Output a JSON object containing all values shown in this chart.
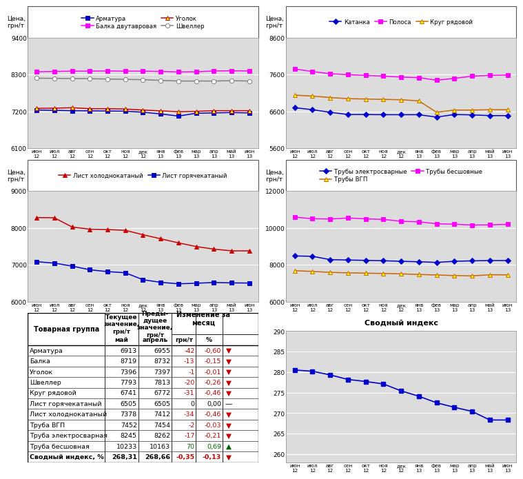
{
  "x_labels": [
    "июн\n12",
    "июл\n12",
    "авг\n12",
    "сен\n12",
    "окт\n12",
    "ноя\n12",
    "дек\n12",
    "янв\n13",
    "фев\n13",
    "мар\n13",
    "апр\n13",
    "май\n13",
    "июн\n13"
  ],
  "n_points": 13,
  "chart1": {
    "title": "Цена,\nгрн/т",
    "ylim": [
      6100,
      9400
    ],
    "yticks": [
      6100,
      7200,
      8300,
      9400
    ],
    "series": {
      "Арматура": {
        "color": "#0000CC",
        "marker": "s",
        "mfc": "#0000CC",
        "values": [
          7240,
          7230,
          7220,
          7215,
          7210,
          7205,
          7175,
          7125,
          7060,
          7145,
          7155,
          7165,
          7155
        ]
      },
      "Балка двутавровая": {
        "color": "#FF00FF",
        "marker": "s",
        "mfc": "#FF00FF",
        "values": [
          8380,
          8390,
          8400,
          8400,
          8405,
          8400,
          8400,
          8390,
          8375,
          8380,
          8405,
          8410,
          8405
        ]
      },
      "Уголок": {
        "color": "#CC0000",
        "marker": "^",
        "mfc": "#FFFF00",
        "values": [
          7290,
          7295,
          7310,
          7280,
          7280,
          7270,
          7240,
          7215,
          7190,
          7200,
          7220,
          7220,
          7220
        ]
      },
      "Швеллер": {
        "color": "#808080",
        "marker": "o",
        "mfc": "#FFFFFF",
        "values": [
          8190,
          8185,
          8180,
          8175,
          8165,
          8155,
          8145,
          8125,
          8105,
          8105,
          8105,
          8115,
          8105
        ]
      }
    }
  },
  "chart2": {
    "title": "Цена,\nгрн/т",
    "ylim": [
      5600,
      8600
    ],
    "yticks": [
      5600,
      6600,
      7600,
      8600
    ],
    "series": {
      "Катанка": {
        "color": "#0000CC",
        "marker": "D",
        "mfc": "#0000CC",
        "values": [
          6700,
          6645,
          6575,
          6515,
          6515,
          6510,
          6510,
          6510,
          6445,
          6515,
          6505,
          6485,
          6485
        ]
      },
      "Полоса": {
        "color": "#FF00FF",
        "marker": "s",
        "mfc": "#FF00FF",
        "values": [
          7750,
          7680,
          7620,
          7595,
          7575,
          7555,
          7530,
          7515,
          7445,
          7495,
          7555,
          7575,
          7585
        ]
      },
      "Круг рядовой": {
        "color": "#CC6600",
        "marker": "^",
        "mfc": "#FFFF00",
        "values": [
          7040,
          7015,
          6975,
          6945,
          6935,
          6925,
          6915,
          6885,
          6575,
          6635,
          6635,
          6645,
          6645
        ]
      }
    }
  },
  "chart3": {
    "title": "Цена,\nгрн/т",
    "ylim": [
      6000,
      9000
    ],
    "yticks": [
      6000,
      7000,
      8000,
      9000
    ],
    "series": {
      "Лист холоднокатаный": {
        "color": "#CC0000",
        "marker": "^",
        "mfc": "#CC0000",
        "values": [
          8280,
          8275,
          8025,
          7965,
          7955,
          7935,
          7815,
          7705,
          7595,
          7495,
          7425,
          7378,
          7378
        ]
      },
      "Лист горячекатаный": {
        "color": "#0000CC",
        "marker": "s",
        "mfc": "#0000CC",
        "values": [
          7085,
          7045,
          6965,
          6865,
          6815,
          6785,
          6595,
          6525,
          6485,
          6500,
          6520,
          6510,
          6505
        ]
      }
    }
  },
  "chart4": {
    "title": "Цена,\nгрн/т",
    "ylim": [
      6000,
      12000
    ],
    "yticks": [
      6000,
      8000,
      10000,
      12000
    ],
    "series": {
      "Трубы электросварные": {
        "color": "#0000CC",
        "marker": "D",
        "mfc": "#0000CC",
        "values": [
          8480,
          8460,
          8280,
          8260,
          8240,
          8220,
          8190,
          8165,
          8130,
          8190,
          8215,
          8230,
          8230
        ]
      },
      "Трубы ВГП": {
        "color": "#CC6600",
        "marker": "^",
        "mfc": "#FFFF00",
        "values": [
          7680,
          7640,
          7590,
          7565,
          7545,
          7530,
          7510,
          7475,
          7450,
          7415,
          7400,
          7460,
          7455
        ]
      },
      "Трубы бесшовные": {
        "color": "#FF00FF",
        "marker": "s",
        "mfc": "#FF00FF",
        "values": [
          10580,
          10500,
          10480,
          10540,
          10490,
          10460,
          10360,
          10330,
          10225,
          10200,
          10155,
          10165,
          10195
        ]
      }
    }
  },
  "chart5": {
    "title": "Сводный индекс",
    "ylim": [
      258,
      290
    ],
    "yticks": [
      260,
      265,
      270,
      275,
      280,
      285,
      290
    ],
    "values": [
      280.5,
      280.2,
      279.3,
      278.2,
      277.7,
      277.1,
      275.4,
      274.1,
      272.5,
      271.4,
      270.4,
      268.3,
      268.3
    ]
  },
  "table": {
    "rows": [
      [
        "Арматура",
        "6913",
        "6955",
        "-42",
        "-0,60",
        "▼"
      ],
      [
        "Балка",
        "8719",
        "8732",
        "-13",
        "-0,15",
        "▼"
      ],
      [
        "Уголок",
        "7396",
        "7397",
        "-1",
        "-0,01",
        "▼"
      ],
      [
        "Швеллер",
        "7793",
        "7813",
        "-20",
        "-0,26",
        "▼"
      ],
      [
        "Круг рядовой",
        "6741",
        "6772",
        "-31",
        "-0,46",
        "▼"
      ],
      [
        "Лист горячекатаный",
        "6505",
        "6505",
        "0",
        "0,00",
        "—"
      ],
      [
        "Лист холоднокатаный",
        "7378",
        "7412",
        "-34",
        "-0,46",
        "▼"
      ],
      [
        "Труба ВГП",
        "7452",
        "7454",
        "-2",
        "-0,03",
        "▼"
      ],
      [
        "Труба электросварная",
        "8245",
        "8262",
        "-17",
        "-0,21",
        "▼"
      ],
      [
        "Труба бесшовная",
        "10233",
        "10163",
        "70",
        "0,69",
        "▲"
      ],
      [
        "Сводный индекс, %",
        "268,31",
        "268,66",
        "-0,35",
        "-0,13",
        "▼"
      ]
    ]
  },
  "bg": "#FFFFFF",
  "plot_bg": "#DCDCDC"
}
